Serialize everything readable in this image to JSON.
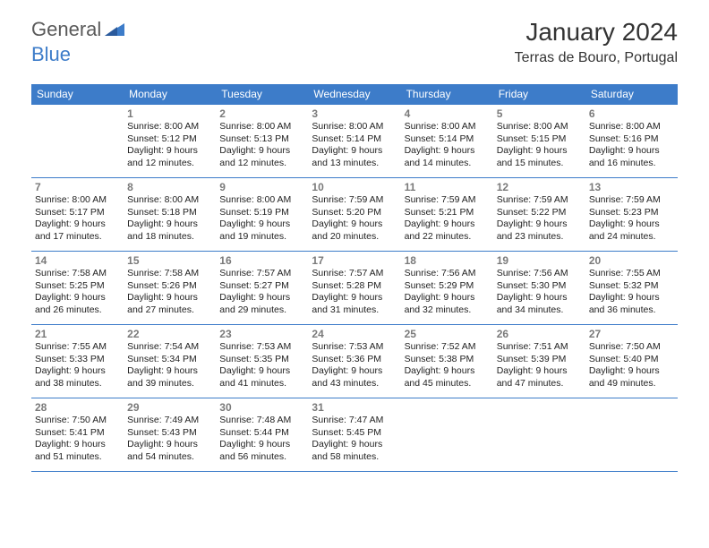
{
  "logo": {
    "text1": "General",
    "text2": "Blue"
  },
  "title": "January 2024",
  "location": "Terras de Bouro, Portugal",
  "colors": {
    "header_bg": "#3d7cc9",
    "header_text": "#ffffff",
    "border": "#3d7cc9",
    "daynum": "#7a7a7a",
    "body_bg": "#ffffff",
    "text": "#222222",
    "logo_gray": "#5a5a5a",
    "logo_blue": "#3d7cc9"
  },
  "weekdays": [
    "Sunday",
    "Monday",
    "Tuesday",
    "Wednesday",
    "Thursday",
    "Friday",
    "Saturday"
  ],
  "weeks": [
    [
      null,
      {
        "n": "1",
        "sr": "Sunrise: 8:00 AM",
        "ss": "Sunset: 5:12 PM",
        "dl1": "Daylight: 9 hours",
        "dl2": "and 12 minutes."
      },
      {
        "n": "2",
        "sr": "Sunrise: 8:00 AM",
        "ss": "Sunset: 5:13 PM",
        "dl1": "Daylight: 9 hours",
        "dl2": "and 12 minutes."
      },
      {
        "n": "3",
        "sr": "Sunrise: 8:00 AM",
        "ss": "Sunset: 5:14 PM",
        "dl1": "Daylight: 9 hours",
        "dl2": "and 13 minutes."
      },
      {
        "n": "4",
        "sr": "Sunrise: 8:00 AM",
        "ss": "Sunset: 5:14 PM",
        "dl1": "Daylight: 9 hours",
        "dl2": "and 14 minutes."
      },
      {
        "n": "5",
        "sr": "Sunrise: 8:00 AM",
        "ss": "Sunset: 5:15 PM",
        "dl1": "Daylight: 9 hours",
        "dl2": "and 15 minutes."
      },
      {
        "n": "6",
        "sr": "Sunrise: 8:00 AM",
        "ss": "Sunset: 5:16 PM",
        "dl1": "Daylight: 9 hours",
        "dl2": "and 16 minutes."
      }
    ],
    [
      {
        "n": "7",
        "sr": "Sunrise: 8:00 AM",
        "ss": "Sunset: 5:17 PM",
        "dl1": "Daylight: 9 hours",
        "dl2": "and 17 minutes."
      },
      {
        "n": "8",
        "sr": "Sunrise: 8:00 AM",
        "ss": "Sunset: 5:18 PM",
        "dl1": "Daylight: 9 hours",
        "dl2": "and 18 minutes."
      },
      {
        "n": "9",
        "sr": "Sunrise: 8:00 AM",
        "ss": "Sunset: 5:19 PM",
        "dl1": "Daylight: 9 hours",
        "dl2": "and 19 minutes."
      },
      {
        "n": "10",
        "sr": "Sunrise: 7:59 AM",
        "ss": "Sunset: 5:20 PM",
        "dl1": "Daylight: 9 hours",
        "dl2": "and 20 minutes."
      },
      {
        "n": "11",
        "sr": "Sunrise: 7:59 AM",
        "ss": "Sunset: 5:21 PM",
        "dl1": "Daylight: 9 hours",
        "dl2": "and 22 minutes."
      },
      {
        "n": "12",
        "sr": "Sunrise: 7:59 AM",
        "ss": "Sunset: 5:22 PM",
        "dl1": "Daylight: 9 hours",
        "dl2": "and 23 minutes."
      },
      {
        "n": "13",
        "sr": "Sunrise: 7:59 AM",
        "ss": "Sunset: 5:23 PM",
        "dl1": "Daylight: 9 hours",
        "dl2": "and 24 minutes."
      }
    ],
    [
      {
        "n": "14",
        "sr": "Sunrise: 7:58 AM",
        "ss": "Sunset: 5:25 PM",
        "dl1": "Daylight: 9 hours",
        "dl2": "and 26 minutes."
      },
      {
        "n": "15",
        "sr": "Sunrise: 7:58 AM",
        "ss": "Sunset: 5:26 PM",
        "dl1": "Daylight: 9 hours",
        "dl2": "and 27 minutes."
      },
      {
        "n": "16",
        "sr": "Sunrise: 7:57 AM",
        "ss": "Sunset: 5:27 PM",
        "dl1": "Daylight: 9 hours",
        "dl2": "and 29 minutes."
      },
      {
        "n": "17",
        "sr": "Sunrise: 7:57 AM",
        "ss": "Sunset: 5:28 PM",
        "dl1": "Daylight: 9 hours",
        "dl2": "and 31 minutes."
      },
      {
        "n": "18",
        "sr": "Sunrise: 7:56 AM",
        "ss": "Sunset: 5:29 PM",
        "dl1": "Daylight: 9 hours",
        "dl2": "and 32 minutes."
      },
      {
        "n": "19",
        "sr": "Sunrise: 7:56 AM",
        "ss": "Sunset: 5:30 PM",
        "dl1": "Daylight: 9 hours",
        "dl2": "and 34 minutes."
      },
      {
        "n": "20",
        "sr": "Sunrise: 7:55 AM",
        "ss": "Sunset: 5:32 PM",
        "dl1": "Daylight: 9 hours",
        "dl2": "and 36 minutes."
      }
    ],
    [
      {
        "n": "21",
        "sr": "Sunrise: 7:55 AM",
        "ss": "Sunset: 5:33 PM",
        "dl1": "Daylight: 9 hours",
        "dl2": "and 38 minutes."
      },
      {
        "n": "22",
        "sr": "Sunrise: 7:54 AM",
        "ss": "Sunset: 5:34 PM",
        "dl1": "Daylight: 9 hours",
        "dl2": "and 39 minutes."
      },
      {
        "n": "23",
        "sr": "Sunrise: 7:53 AM",
        "ss": "Sunset: 5:35 PM",
        "dl1": "Daylight: 9 hours",
        "dl2": "and 41 minutes."
      },
      {
        "n": "24",
        "sr": "Sunrise: 7:53 AM",
        "ss": "Sunset: 5:36 PM",
        "dl1": "Daylight: 9 hours",
        "dl2": "and 43 minutes."
      },
      {
        "n": "25",
        "sr": "Sunrise: 7:52 AM",
        "ss": "Sunset: 5:38 PM",
        "dl1": "Daylight: 9 hours",
        "dl2": "and 45 minutes."
      },
      {
        "n": "26",
        "sr": "Sunrise: 7:51 AM",
        "ss": "Sunset: 5:39 PM",
        "dl1": "Daylight: 9 hours",
        "dl2": "and 47 minutes."
      },
      {
        "n": "27",
        "sr": "Sunrise: 7:50 AM",
        "ss": "Sunset: 5:40 PM",
        "dl1": "Daylight: 9 hours",
        "dl2": "and 49 minutes."
      }
    ],
    [
      {
        "n": "28",
        "sr": "Sunrise: 7:50 AM",
        "ss": "Sunset: 5:41 PM",
        "dl1": "Daylight: 9 hours",
        "dl2": "and 51 minutes."
      },
      {
        "n": "29",
        "sr": "Sunrise: 7:49 AM",
        "ss": "Sunset: 5:43 PM",
        "dl1": "Daylight: 9 hours",
        "dl2": "and 54 minutes."
      },
      {
        "n": "30",
        "sr": "Sunrise: 7:48 AM",
        "ss": "Sunset: 5:44 PM",
        "dl1": "Daylight: 9 hours",
        "dl2": "and 56 minutes."
      },
      {
        "n": "31",
        "sr": "Sunrise: 7:47 AM",
        "ss": "Sunset: 5:45 PM",
        "dl1": "Daylight: 9 hours",
        "dl2": "and 58 minutes."
      },
      null,
      null,
      null
    ]
  ]
}
